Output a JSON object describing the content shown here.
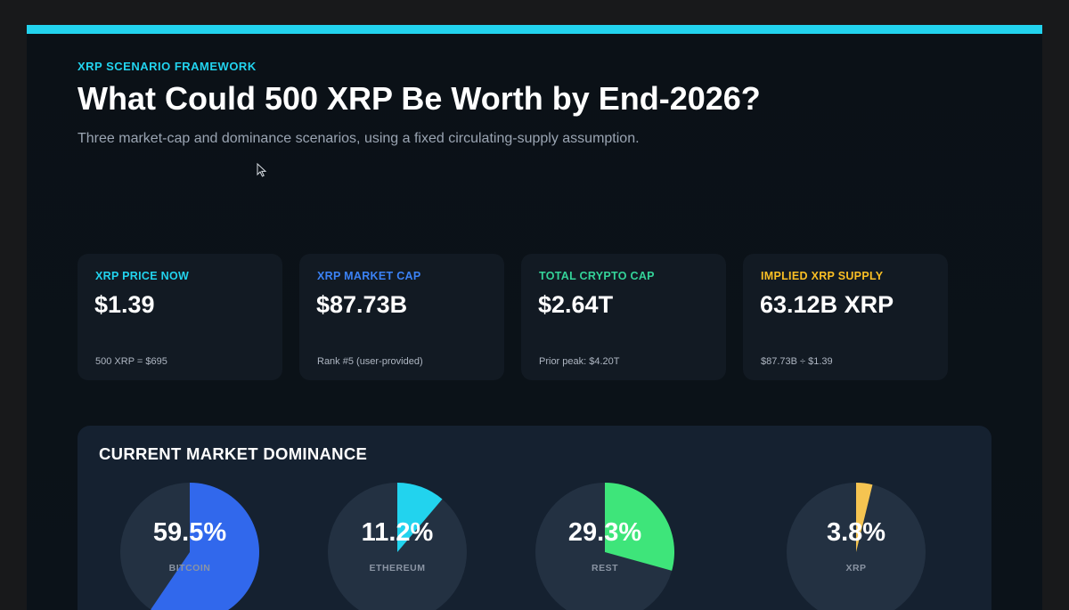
{
  "header": {
    "kicker": "XRP SCENARIO FRAMEWORK",
    "kicker_color": "#22d3ee",
    "title": "What Could 500 XRP Be Worth by End-2026?",
    "subtitle": "Three market-cap and dominance scenarios, using a fixed circulating-supply assumption."
  },
  "stat_cards": [
    {
      "label": "XRP PRICE NOW",
      "value": "$1.39",
      "note": "500 XRP = $695",
      "color": "#22d3ee"
    },
    {
      "label": "XRP MARKET CAP",
      "value": "$87.73B",
      "note": "Rank #5 (user-provided)",
      "color": "#3b82f6"
    },
    {
      "label": "TOTAL CRYPTO CAP",
      "value": "$2.64T",
      "note": "Prior peak: $4.20T",
      "color": "#34d399"
    },
    {
      "label": "IMPLIED XRP SUPPLY",
      "value": "63.12B XRP",
      "note": "$87.73B ÷ $1.39",
      "color": "#fbbf24"
    }
  ],
  "dominance": {
    "title": "CURRENT MARKET DOMINANCE",
    "pies": [
      {
        "pct_label": "59.5%",
        "name": "BITCOIN",
        "value": 59.5,
        "color": "#3168ec"
      },
      {
        "pct_label": "11.2%",
        "name": "ETHEREUM",
        "value": 11.2,
        "color": "#22d3ee"
      },
      {
        "pct_label": "29.3%",
        "name": "REST",
        "value": 29.3,
        "color": "#3ee57a"
      },
      {
        "pct_label": "3.8%",
        "name": "XRP",
        "value": 3.8,
        "color": "#f5c451"
      }
    ],
    "track_color": "#233142"
  },
  "icons": {
    "cursor": "mouse-pointer-icon"
  }
}
